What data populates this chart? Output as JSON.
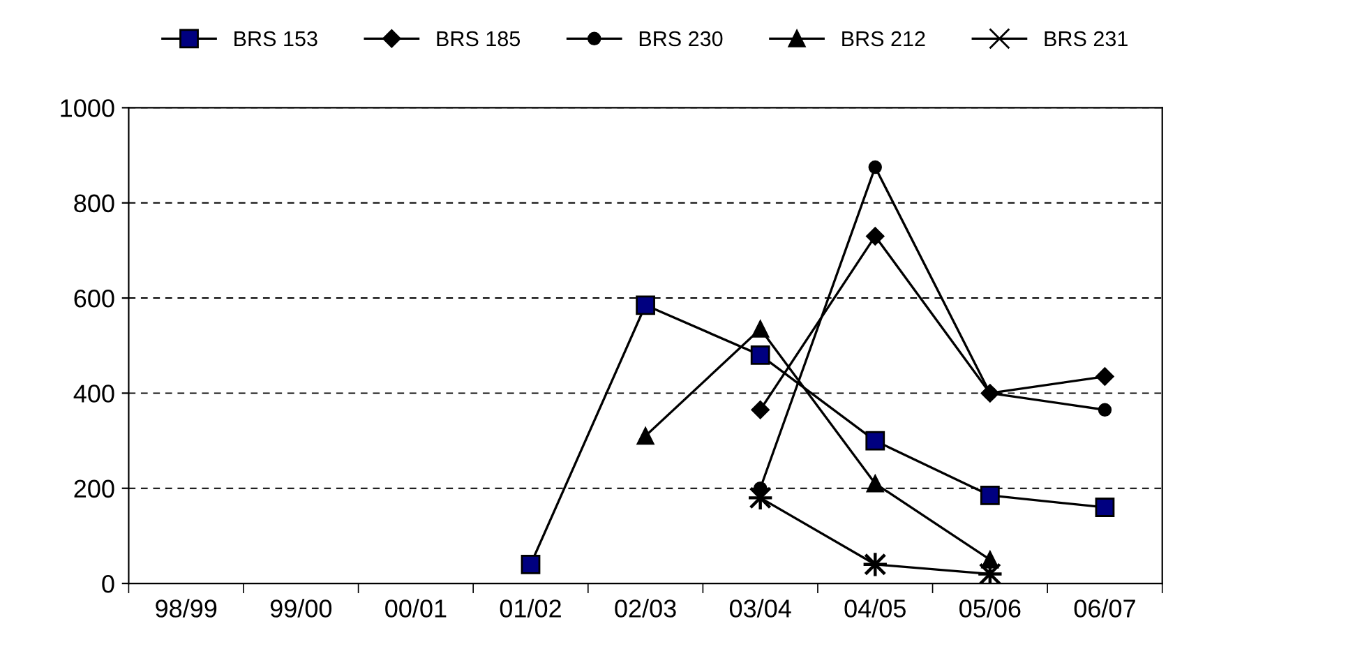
{
  "chart_data": {
    "type": "line",
    "categories": [
      "98/99",
      "99/00",
      "00/01",
      "01/02",
      "02/03",
      "03/04",
      "04/05",
      "05/06",
      "06/07"
    ],
    "series": [
      {
        "name": "BRS 153",
        "color": "#000080",
        "marker": "square",
        "values": [
          null,
          null,
          null,
          40,
          585,
          480,
          300,
          185,
          160
        ]
      },
      {
        "name": "BRS 185",
        "color": "#000000",
        "marker": "diamond",
        "values": [
          null,
          null,
          null,
          null,
          null,
          365,
          730,
          400,
          435
        ]
      },
      {
        "name": "BRS 230",
        "color": "#000000",
        "marker": "circle",
        "values": [
          null,
          null,
          null,
          null,
          null,
          200,
          875,
          400,
          365
        ]
      },
      {
        "name": "BRS 212",
        "color": "#000000",
        "marker": "triangle",
        "values": [
          null,
          null,
          null,
          null,
          310,
          535,
          210,
          50,
          null
        ]
      },
      {
        "name": "BRS 231",
        "color": "#000000",
        "marker": "cross",
        "values": [
          null,
          null,
          null,
          null,
          null,
          180,
          40,
          20,
          null
        ]
      }
    ],
    "ylim": [
      0,
      1000
    ],
    "yticks": [
      0,
      200,
      400,
      600,
      800,
      1000
    ],
    "grid": "y",
    "legend": "top",
    "line_style": "solid"
  }
}
